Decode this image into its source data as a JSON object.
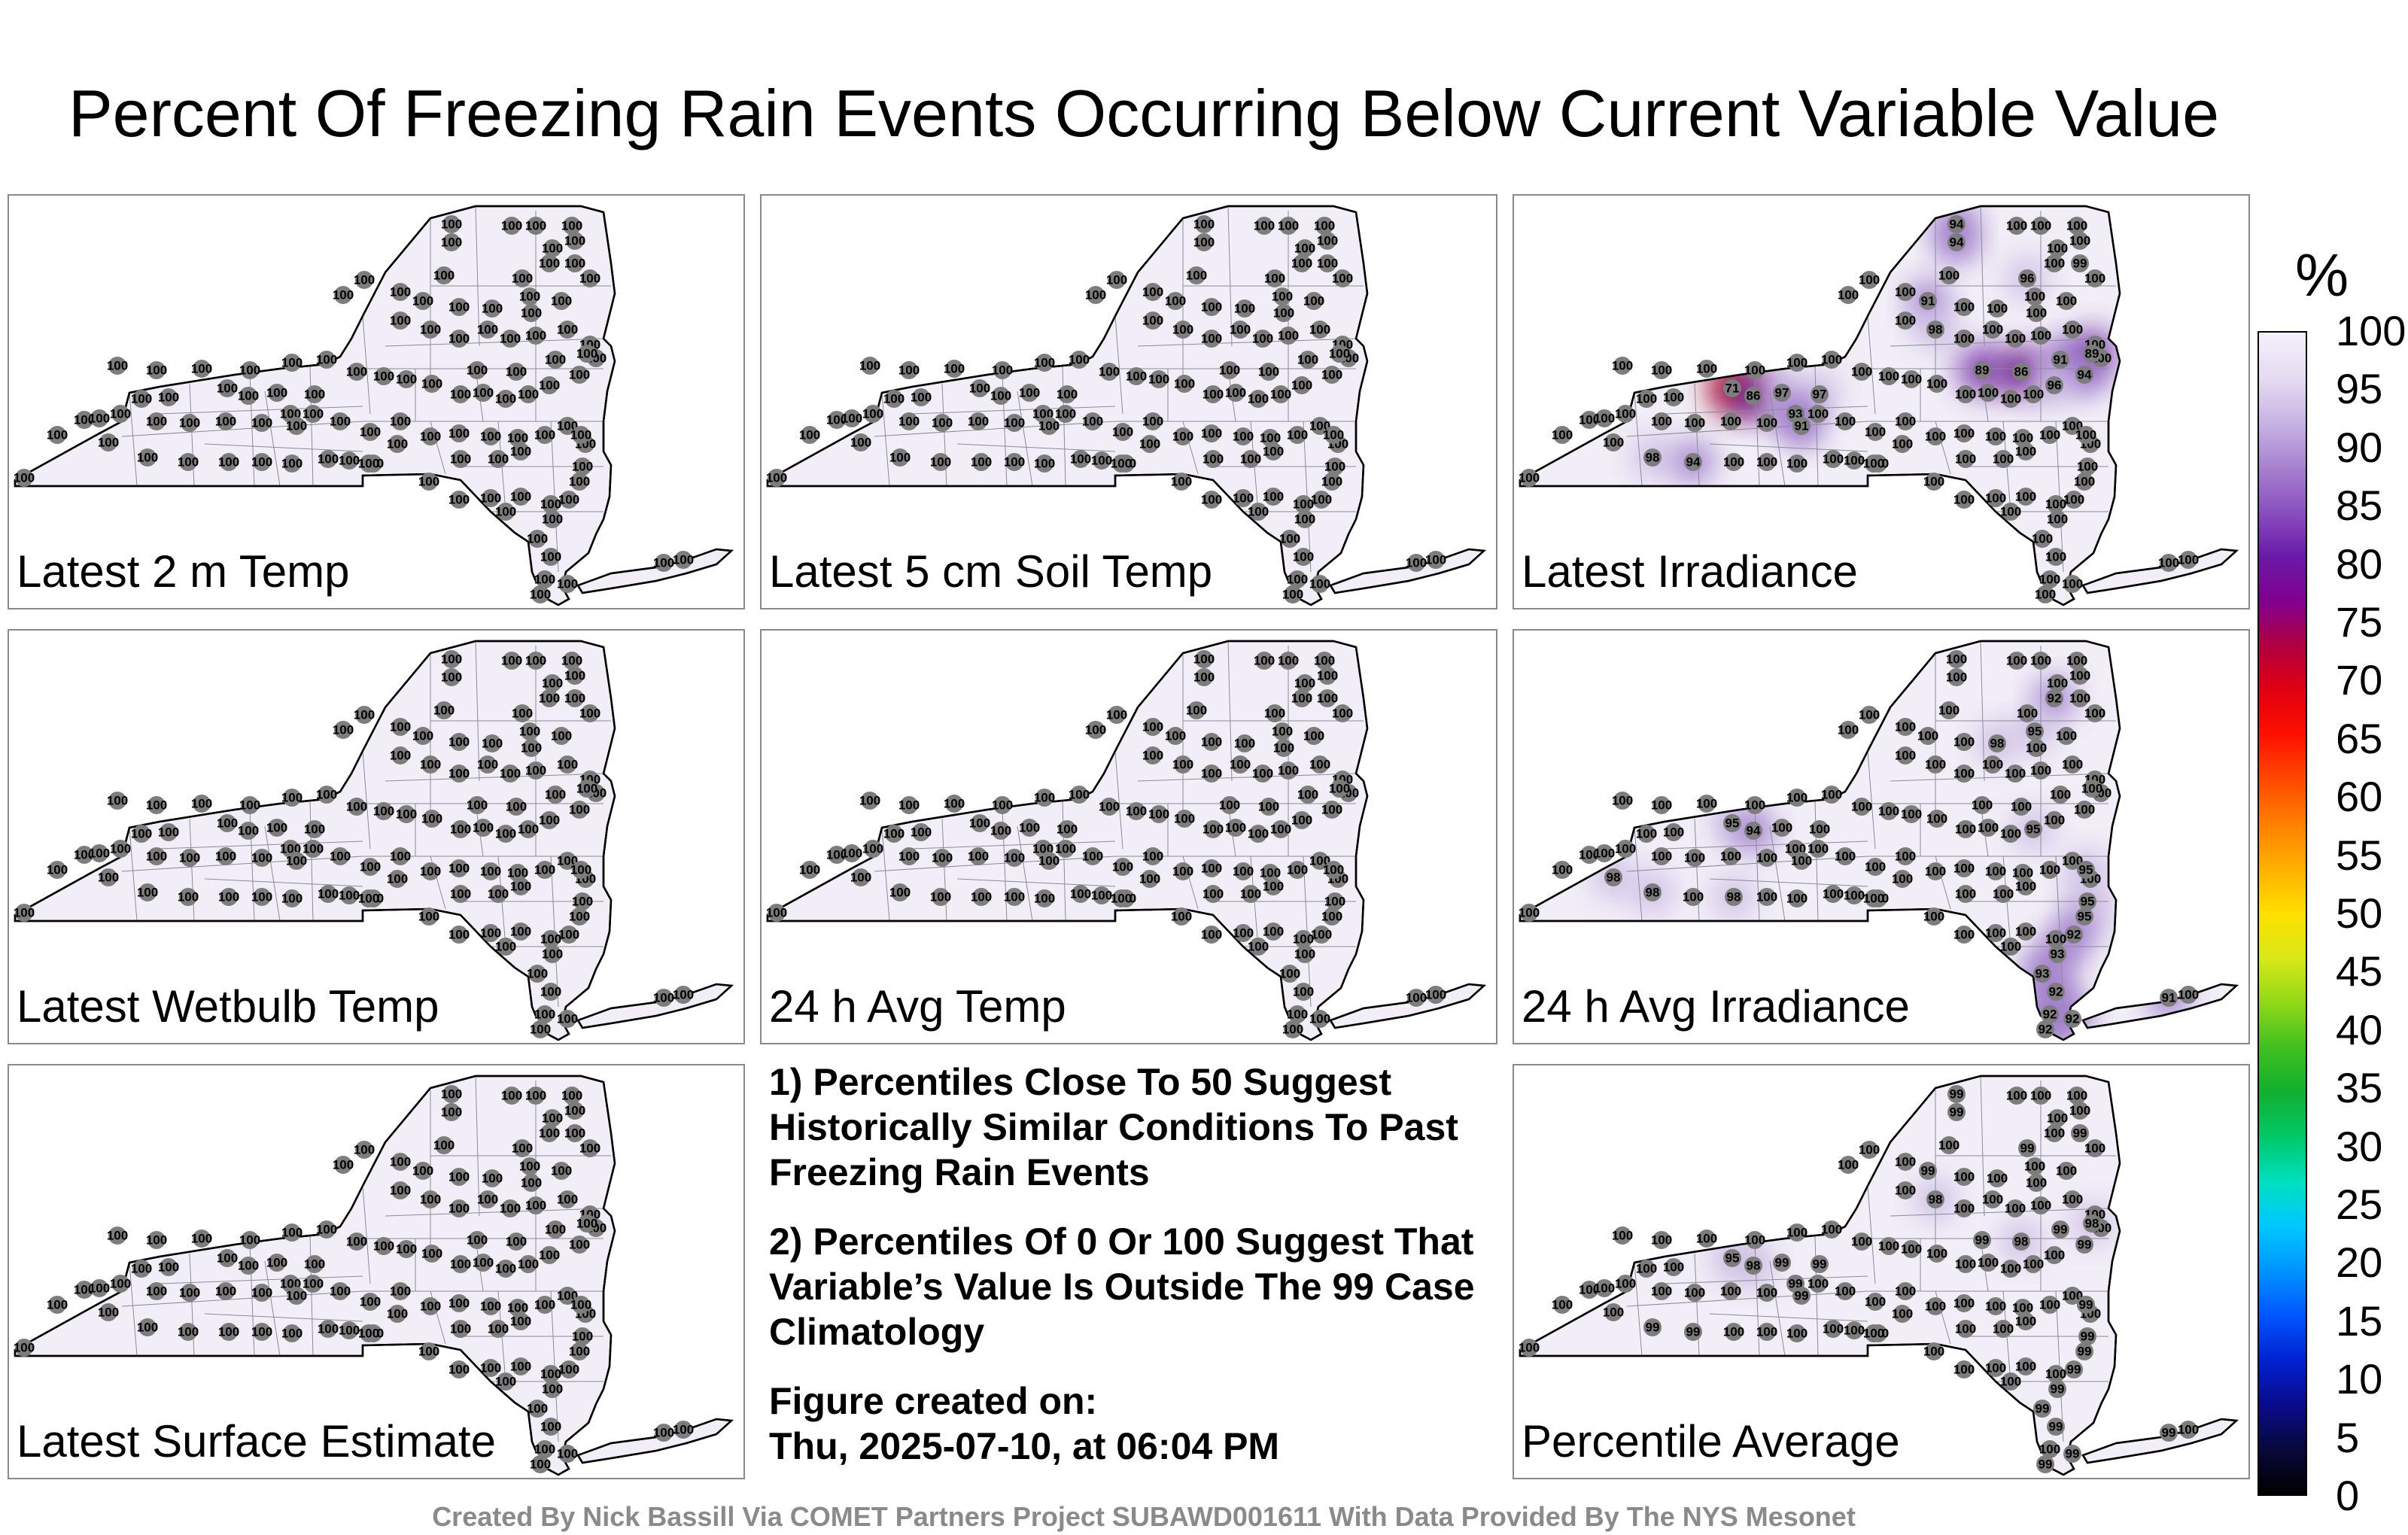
{
  "title": "Percent Of Freezing Rain Events Occurring Below Current Variable Value",
  "colorbar": {
    "unit": "%",
    "ticks": [
      "100",
      "95",
      "90",
      "85",
      "80",
      "75",
      "70",
      "65",
      "60",
      "55",
      "50",
      "45",
      "40",
      "35",
      "30",
      "25",
      "20",
      "15",
      "10",
      "5",
      "0"
    ]
  },
  "notes": {
    "note1": "1) Percentiles Close To 50 Suggest Historically Similar Conditions To Past Freezing Rain Events",
    "note2": "2) Percentiles Of 0 Or 100 Suggest That Variable’s Value Is Outside The 99 Case Climatology",
    "created_label": "Figure created on:",
    "created_date": "Thu, 2025-07-10, at 06:04 PM"
  },
  "footer": "Created By Nick Bassill Via COMET Partners Project SUBAWD001611 With Data Provided By The NYS Mesonet",
  "chart_data": [
    {
      "type": "map",
      "title": "Latest 2 m Temp",
      "stations_default": 100,
      "overrides": []
    },
    {
      "type": "map",
      "title": "Latest 5 cm Soil Temp",
      "stations_default": 100,
      "overrides": []
    },
    {
      "type": "map",
      "title": "Latest Irradiance",
      "stations_default": 100,
      "overrides": [
        {
          "station": 0,
          "value": 94
        },
        {
          "station": 1,
          "value": 94
        },
        {
          "station": 8,
          "value": 96
        },
        {
          "station": 7,
          "value": 99
        },
        {
          "station": 14,
          "value": 91
        },
        {
          "station": 22,
          "value": 98
        },
        {
          "station": 30,
          "value": 89
        },
        {
          "station": 31,
          "value": 86
        },
        {
          "station": 32,
          "value": 91
        },
        {
          "station": 33,
          "value": 89
        },
        {
          "station": 34,
          "value": 94
        },
        {
          "station": 35,
          "value": 96
        },
        {
          "station": 50,
          "value": 71
        },
        {
          "station": 51,
          "value": 86
        },
        {
          "station": 52,
          "value": 97
        },
        {
          "station": 53,
          "value": 97
        },
        {
          "station": 54,
          "value": 93
        },
        {
          "station": 55,
          "value": 91
        },
        {
          "station": 64,
          "value": 98
        },
        {
          "station": 65,
          "value": 94
        }
      ]
    },
    {
      "type": "map",
      "title": "Latest Wetbulb Temp",
      "stations_default": 100,
      "overrides": []
    },
    {
      "type": "map",
      "title": "24 h Avg Temp",
      "stations_default": 100,
      "overrides": []
    },
    {
      "type": "map",
      "title": "24 h Avg Irradiance",
      "stations_default": 100,
      "overrides": [
        {
          "station": 9,
          "value": 92
        },
        {
          "station": 16,
          "value": 98
        },
        {
          "station": 17,
          "value": 95
        },
        {
          "station": 36,
          "value": 95
        },
        {
          "station": 50,
          "value": 95
        },
        {
          "station": 51,
          "value": 94
        },
        {
          "station": 63,
          "value": 98
        },
        {
          "station": 64,
          "value": 98
        },
        {
          "station": 66,
          "value": 98
        },
        {
          "station": 80,
          "value": 95
        },
        {
          "station": 81,
          "value": 95
        },
        {
          "station": 82,
          "value": 95
        },
        {
          "station": 83,
          "value": 92
        },
        {
          "station": 84,
          "value": 93
        },
        {
          "station": 85,
          "value": 93
        },
        {
          "station": 86,
          "value": 92
        },
        {
          "station": 87,
          "value": 92
        },
        {
          "station": 88,
          "value": 92
        },
        {
          "station": 89,
          "value": 92
        },
        {
          "station": 90,
          "value": 91
        }
      ]
    },
    {
      "type": "map",
      "title": "Latest Surface Estimate",
      "stations_default": 100,
      "overrides": []
    },
    {
      "type": "map",
      "title": "Percentile Average",
      "stations_default": 100,
      "overrides": [
        {
          "station": 0,
          "value": 99
        },
        {
          "station": 1,
          "value": 99
        },
        {
          "station": 8,
          "value": 99
        },
        {
          "station": 7,
          "value": 99
        },
        {
          "station": 14,
          "value": 99
        },
        {
          "station": 22,
          "value": 98
        },
        {
          "station": 30,
          "value": 99
        },
        {
          "station": 31,
          "value": 98
        },
        {
          "station": 32,
          "value": 99
        },
        {
          "station": 33,
          "value": 98
        },
        {
          "station": 34,
          "value": 99
        },
        {
          "station": 50,
          "value": 95
        },
        {
          "station": 51,
          "value": 98
        },
        {
          "station": 52,
          "value": 99
        },
        {
          "station": 53,
          "value": 99
        },
        {
          "station": 54,
          "value": 99
        },
        {
          "station": 55,
          "value": 99
        },
        {
          "station": 64,
          "value": 99
        },
        {
          "station": 65,
          "value": 99
        },
        {
          "station": 80,
          "value": 99
        },
        {
          "station": 81,
          "value": 99
        },
        {
          "station": 82,
          "value": 99
        },
        {
          "station": 83,
          "value": 99
        },
        {
          "station": 84,
          "value": 99
        },
        {
          "station": 85,
          "value": 99
        },
        {
          "station": 86,
          "value": 99
        },
        {
          "station": 88,
          "value": 99
        },
        {
          "station": 89,
          "value": 99
        },
        {
          "station": 90,
          "value": 99
        }
      ]
    }
  ]
}
